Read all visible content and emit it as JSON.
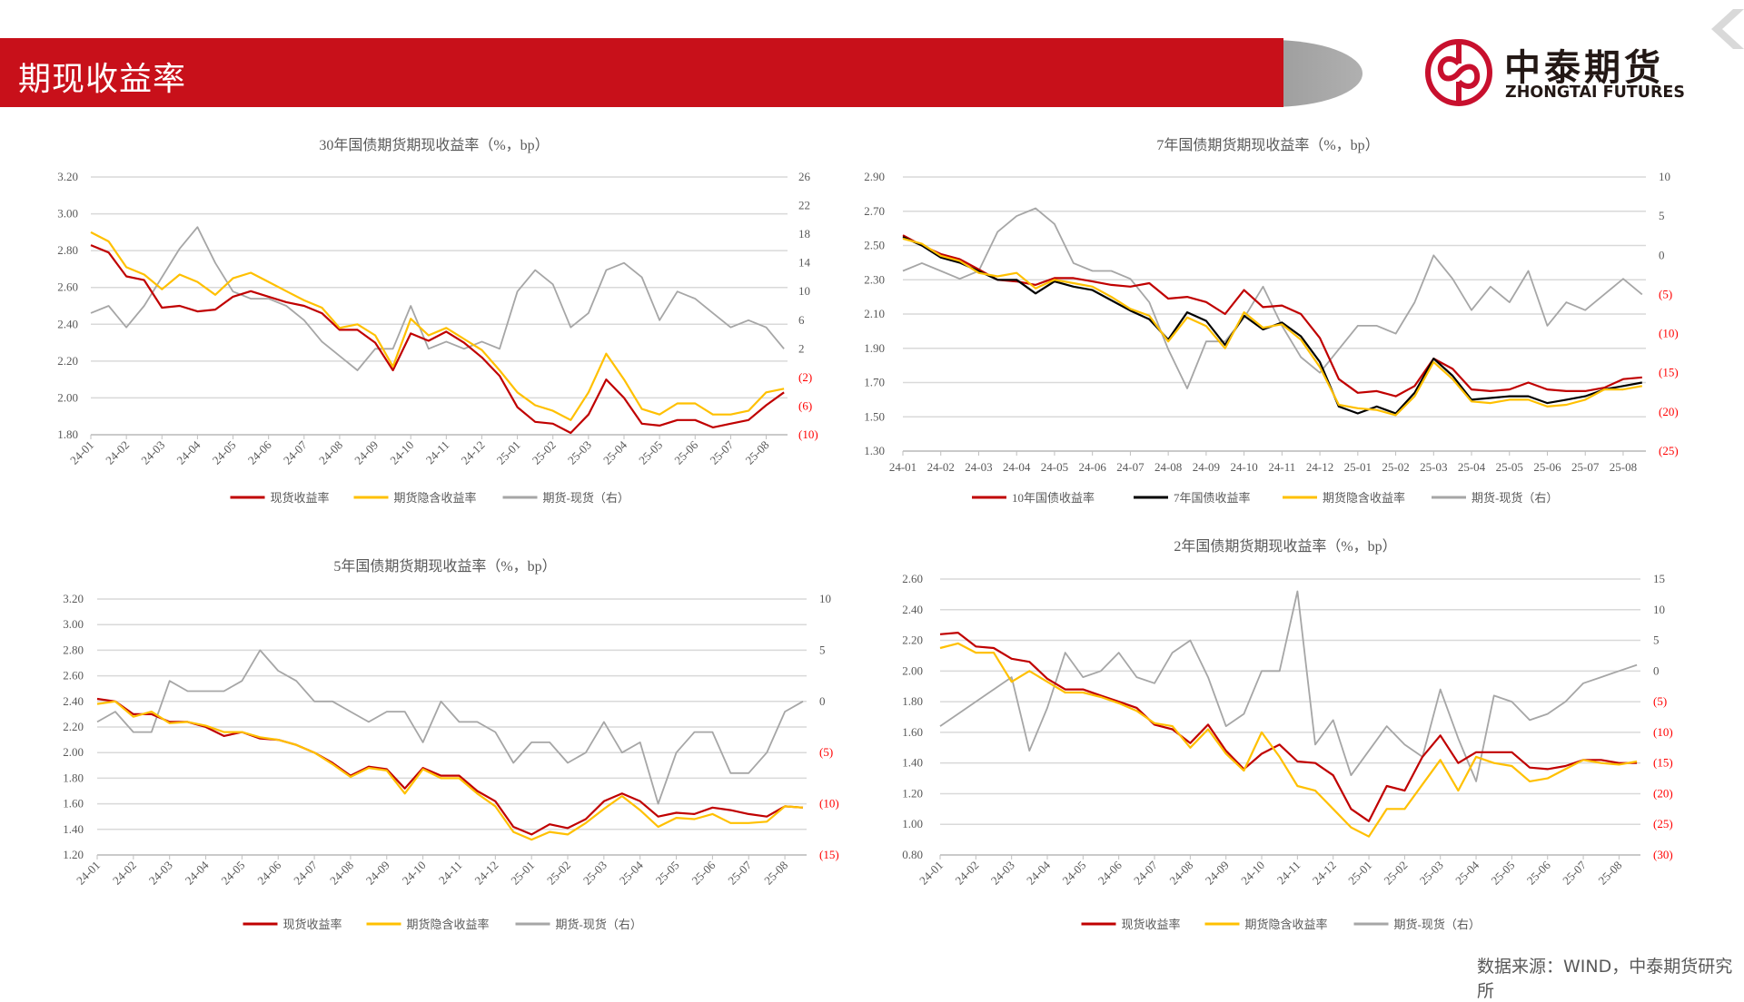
{
  "header": {
    "title": "期现收益率"
  },
  "logo": {
    "cn": "中泰期货",
    "en": "ZHONGTAI FUTURES"
  },
  "footer": {
    "source": "数据来源：WIND，中泰期货研究所"
  },
  "colors": {
    "red": "#C00000",
    "yellow": "#FFC000",
    "gray": "#A6A6A6",
    "black": "#000000",
    "brand": "#C8101A",
    "negative_label": "#FF0000"
  },
  "chart_data": [
    {
      "type": "line",
      "title": "30年国债期货期现收益率（%，bp）",
      "x_ticks": [
        "24-01",
        "24-02",
        "24-03",
        "24-04",
        "24-05",
        "24-06",
        "24-07",
        "24-08",
        "24-09",
        "24-10",
        "24-11",
        "24-12",
        "25-01",
        "25-02",
        "25-03",
        "25-04",
        "25-05",
        "25-06",
        "25-07",
        "25-08"
      ],
      "x": [
        0,
        0.5,
        1,
        1.5,
        2,
        2.5,
        3,
        3.5,
        4,
        4.5,
        5,
        5.5,
        6,
        6.5,
        7,
        7.5,
        8,
        8.5,
        9,
        9.5,
        10,
        10.5,
        11,
        11.5,
        12,
        12.5,
        13,
        13.5,
        14,
        14.5,
        15,
        15.5,
        16,
        16.5,
        17,
        17.5,
        18,
        18.5,
        19,
        19.5
      ],
      "ylim": [
        1.8,
        3.2
      ],
      "y_ticks": [
        "3.20",
        "3.00",
        "2.80",
        "2.60",
        "2.40",
        "2.20",
        "2.00",
        "1.80"
      ],
      "y2lim": [
        -10,
        26
      ],
      "y2_ticks": [
        "26",
        "22",
        "18",
        "14",
        "10",
        "6",
        "2",
        "(2)",
        "(6)",
        "(10)"
      ],
      "grid": true,
      "legend_position": "bottom",
      "series": [
        {
          "name": "现货收益率",
          "color": "#C00000",
          "axis": "left",
          "values": [
            2.83,
            2.79,
            2.66,
            2.64,
            2.49,
            2.5,
            2.47,
            2.48,
            2.55,
            2.58,
            2.55,
            2.52,
            2.5,
            2.46,
            2.37,
            2.37,
            2.3,
            2.15,
            2.35,
            2.31,
            2.36,
            2.3,
            2.22,
            2.12,
            1.95,
            1.87,
            1.86,
            1.81,
            1.91,
            2.1,
            2.0,
            1.86,
            1.85,
            1.88,
            1.88,
            1.84,
            1.86,
            1.88,
            1.96,
            2.03
          ]
        },
        {
          "name": "期货隐含收益率",
          "color": "#FFC000",
          "axis": "left",
          "values": [
            2.9,
            2.85,
            2.71,
            2.67,
            2.59,
            2.67,
            2.63,
            2.56,
            2.65,
            2.68,
            2.63,
            2.58,
            2.53,
            2.49,
            2.38,
            2.4,
            2.34,
            2.17,
            2.43,
            2.34,
            2.38,
            2.32,
            2.26,
            2.15,
            2.03,
            1.96,
            1.93,
            1.88,
            2.03,
            2.24,
            2.1,
            1.94,
            1.91,
            1.97,
            1.97,
            1.91,
            1.91,
            1.93,
            2.03,
            2.05
          ]
        },
        {
          "name": "期货-现货（右）",
          "color": "#A6A6A6",
          "axis": "right",
          "values": [
            7,
            8,
            5,
            8,
            12,
            16,
            19,
            14,
            10,
            9,
            9,
            8,
            6,
            3,
            1,
            -1,
            2,
            2,
            8,
            2,
            3,
            2,
            3,
            2,
            10,
            13,
            11,
            5,
            7,
            13,
            14,
            12,
            6,
            10,
            9,
            7,
            5,
            6,
            5,
            2
          ]
        }
      ]
    },
    {
      "type": "line",
      "title": "7年国债期货期现收益率（%，bp）",
      "x_ticks": [
        "24-01",
        "24-02",
        "24-03",
        "24-04",
        "24-05",
        "24-06",
        "24-07",
        "24-08",
        "24-09",
        "24-10",
        "24-11",
        "24-12",
        "25-01",
        "25-02",
        "25-03",
        "25-04",
        "25-05",
        "25-06",
        "25-07",
        "25-08"
      ],
      "x": [
        0,
        0.5,
        1,
        1.5,
        2,
        2.5,
        3,
        3.5,
        4,
        4.5,
        5,
        5.5,
        6,
        6.5,
        7,
        7.5,
        8,
        8.5,
        9,
        9.5,
        10,
        10.5,
        11,
        11.5,
        12,
        12.5,
        13,
        13.5,
        14,
        14.5,
        15,
        15.5,
        16,
        16.5,
        17,
        17.5,
        18,
        18.5,
        19,
        19.5
      ],
      "ylim": [
        1.3,
        2.9
      ],
      "y_ticks": [
        "2.90",
        "2.70",
        "2.50",
        "2.30",
        "2.10",
        "1.90",
        "1.70",
        "1.50",
        "1.30"
      ],
      "y2lim": [
        -25,
        10
      ],
      "y2_ticks": [
        "10",
        "5",
        "0",
        "(5)",
        "(10)",
        "(15)",
        "(20)",
        "(25)"
      ],
      "grid": true,
      "legend_position": "bottom",
      "series": [
        {
          "name": "10年国债收益率",
          "color": "#C00000",
          "axis": "left",
          "values": [
            2.56,
            2.5,
            2.45,
            2.42,
            2.36,
            2.3,
            2.29,
            2.27,
            2.31,
            2.31,
            2.29,
            2.27,
            2.26,
            2.28,
            2.19,
            2.2,
            2.17,
            2.1,
            2.24,
            2.14,
            2.15,
            2.1,
            1.96,
            1.72,
            1.64,
            1.65,
            1.62,
            1.68,
            1.84,
            1.78,
            1.66,
            1.65,
            1.66,
            1.7,
            1.66,
            1.65,
            1.65,
            1.67,
            1.72,
            1.73
          ]
        },
        {
          "name": "7年国债收益率",
          "color": "#000000",
          "axis": "left",
          "values": [
            2.55,
            2.5,
            2.43,
            2.4,
            2.35,
            2.3,
            2.3,
            2.22,
            2.29,
            2.26,
            2.24,
            2.18,
            2.12,
            2.07,
            1.95,
            2.11,
            2.06,
            1.92,
            2.09,
            2.01,
            2.05,
            1.97,
            1.82,
            1.56,
            1.52,
            1.56,
            1.52,
            1.64,
            1.84,
            1.74,
            1.6,
            1.61,
            1.62,
            1.62,
            1.58,
            1.6,
            1.62,
            1.66,
            1.68,
            1.7
          ]
        },
        {
          "name": "期货隐含收益率",
          "color": "#FFC000",
          "axis": "left",
          "values": [
            2.54,
            2.51,
            2.44,
            2.41,
            2.34,
            2.32,
            2.34,
            2.25,
            2.3,
            2.28,
            2.26,
            2.2,
            2.13,
            2.09,
            1.94,
            2.08,
            2.03,
            1.9,
            2.11,
            2.02,
            2.04,
            1.95,
            1.79,
            1.57,
            1.55,
            1.54,
            1.51,
            1.62,
            1.82,
            1.72,
            1.59,
            1.58,
            1.6,
            1.6,
            1.56,
            1.57,
            1.6,
            1.66,
            1.66,
            1.68
          ]
        },
        {
          "name": "期货-现货（右）",
          "color": "#A6A6A6",
          "axis": "right",
          "values": [
            -2,
            -1,
            -2,
            -3,
            -2,
            3,
            5,
            6,
            4,
            -1,
            -2,
            -2,
            -3,
            -6,
            -12,
            -17,
            -11,
            -11,
            -8,
            -4,
            -9,
            -13,
            -15,
            -12,
            -9,
            -9,
            -10,
            -6,
            0,
            -3,
            -7,
            -4,
            -6,
            -2,
            -9,
            -6,
            -7,
            -5,
            -3,
            -5
          ]
        }
      ]
    },
    {
      "type": "line",
      "title": "5年国债期货期现收益率（%，bp）",
      "x_ticks": [
        "24-01",
        "24-02",
        "24-03",
        "24-04",
        "24-05",
        "24-06",
        "24-07",
        "24-08",
        "24-09",
        "24-10",
        "24-11",
        "24-12",
        "25-01",
        "25-02",
        "25-03",
        "25-04",
        "25-05",
        "25-06",
        "25-07",
        "25-08"
      ],
      "x": [
        0,
        0.5,
        1,
        1.5,
        2,
        2.5,
        3,
        3.5,
        4,
        4.5,
        5,
        5.5,
        6,
        6.5,
        7,
        7.5,
        8,
        8.5,
        9,
        9.5,
        10,
        10.5,
        11,
        11.5,
        12,
        12.5,
        13,
        13.5,
        14,
        14.5,
        15,
        15.5,
        16,
        16.5,
        17,
        17.5,
        18,
        18.5,
        19,
        19.5
      ],
      "ylim": [
        1.2,
        3.2
      ],
      "y_ticks": [
        "3.20",
        "3.00",
        "2.80",
        "2.60",
        "2.40",
        "2.20",
        "2.00",
        "1.80",
        "1.60",
        "1.40",
        "1.20"
      ],
      "y2lim": [
        -15,
        10
      ],
      "y2_ticks": [
        "10",
        "5",
        "0",
        "(5)",
        "(10)",
        "(15)"
      ],
      "grid": true,
      "legend_position": "bottom",
      "series": [
        {
          "name": "现货收益率",
          "color": "#C00000",
          "axis": "left",
          "values": [
            2.42,
            2.4,
            2.3,
            2.3,
            2.24,
            2.24,
            2.2,
            2.13,
            2.16,
            2.11,
            2.1,
            2.06,
            2.0,
            1.92,
            1.82,
            1.89,
            1.87,
            1.72,
            1.88,
            1.82,
            1.82,
            1.7,
            1.62,
            1.42,
            1.36,
            1.44,
            1.41,
            1.48,
            1.62,
            1.68,
            1.62,
            1.5,
            1.53,
            1.52,
            1.57,
            1.55,
            1.52,
            1.5,
            1.58,
            1.57
          ]
        },
        {
          "name": "期货隐含收益率",
          "color": "#FFC000",
          "axis": "left",
          "values": [
            2.38,
            2.4,
            2.28,
            2.32,
            2.23,
            2.24,
            2.21,
            2.16,
            2.16,
            2.12,
            2.1,
            2.06,
            2.0,
            1.91,
            1.81,
            1.88,
            1.86,
            1.68,
            1.87,
            1.8,
            1.8,
            1.68,
            1.58,
            1.38,
            1.32,
            1.38,
            1.36,
            1.45,
            1.56,
            1.66,
            1.55,
            1.42,
            1.49,
            1.48,
            1.52,
            1.45,
            1.45,
            1.46,
            1.58,
            1.57
          ]
        },
        {
          "name": "期货-现货（右）",
          "color": "#A6A6A6",
          "axis": "right",
          "values": [
            -2,
            -1,
            -3,
            -3,
            2,
            1,
            1,
            1,
            2,
            5,
            3,
            2,
            0,
            0,
            -1,
            -2,
            -1,
            -1,
            -4,
            0,
            -2,
            -2,
            -3,
            -6,
            -4,
            -4,
            -6,
            -5,
            -2,
            -5,
            -4,
            -10,
            -5,
            -3,
            -3,
            -7,
            -7,
            -5,
            -1,
            0
          ]
        }
      ]
    },
    {
      "type": "line",
      "title": "2年国债期货期现收益率（%，bp）",
      "x_ticks": [
        "24-01",
        "24-02",
        "24-03",
        "24-04",
        "24-05",
        "24-06",
        "24-07",
        "24-08",
        "24-09",
        "24-10",
        "24-11",
        "24-12",
        "25-01",
        "25-02",
        "25-03",
        "25-04",
        "25-05",
        "25-06",
        "25-07",
        "25-08"
      ],
      "x": [
        0,
        0.5,
        1,
        1.5,
        2,
        2.5,
        3,
        3.5,
        4,
        4.5,
        5,
        5.5,
        6,
        6.5,
        7,
        7.5,
        8,
        8.5,
        9,
        9.5,
        10,
        10.5,
        11,
        11.5,
        12,
        12.5,
        13,
        13.5,
        14,
        14.5,
        15,
        15.5,
        16,
        16.5,
        17,
        17.5,
        18,
        18.5,
        19,
        19.5
      ],
      "ylim": [
        0.8,
        2.6
      ],
      "y_ticks": [
        "2.60",
        "2.40",
        "2.20",
        "2.00",
        "1.80",
        "1.60",
        "1.40",
        "1.20",
        "1.00",
        "0.80"
      ],
      "y2lim": [
        -30,
        15
      ],
      "y2_ticks": [
        "15",
        "10",
        "5",
        "0",
        "(5)",
        "(10)",
        "(15)",
        "(20)",
        "(25)",
        "(30)"
      ],
      "grid": true,
      "legend_position": "bottom",
      "series": [
        {
          "name": "现货收益率",
          "color": "#C00000",
          "axis": "left",
          "values": [
            2.24,
            2.25,
            2.16,
            2.15,
            2.08,
            2.06,
            1.95,
            1.88,
            1.88,
            1.84,
            1.8,
            1.76,
            1.65,
            1.62,
            1.53,
            1.65,
            1.48,
            1.36,
            1.46,
            1.52,
            1.41,
            1.4,
            1.32,
            1.1,
            1.02,
            1.25,
            1.22,
            1.44,
            1.58,
            1.4,
            1.47,
            1.47,
            1.47,
            1.37,
            1.36,
            1.38,
            1.42,
            1.42,
            1.4,
            1.4
          ]
        },
        {
          "name": "期货隐含收益率",
          "color": "#FFC000",
          "axis": "left",
          "values": [
            2.15,
            2.18,
            2.12,
            2.12,
            1.93,
            2.0,
            1.93,
            1.86,
            1.86,
            1.83,
            1.79,
            1.74,
            1.66,
            1.64,
            1.5,
            1.62,
            1.46,
            1.35,
            1.6,
            1.44,
            1.25,
            1.22,
            1.1,
            0.98,
            0.92,
            1.1,
            1.1,
            1.26,
            1.42,
            1.22,
            1.44,
            1.4,
            1.38,
            1.28,
            1.3,
            1.36,
            1.42,
            1.4,
            1.39,
            1.41
          ]
        },
        {
          "name": "期货-现货（右）",
          "color": "#A6A6A6",
          "axis": "right",
          "values": [
            -9,
            -7,
            -5,
            -3,
            -1,
            -13,
            -6,
            3,
            -1,
            0,
            3,
            -1,
            -2,
            3,
            5,
            -1,
            -9,
            -7,
            0,
            0,
            13,
            -12,
            -8,
            -17,
            -13,
            -9,
            -12,
            -14,
            -3,
            -11,
            -18,
            -4,
            -5,
            -8,
            -7,
            -5,
            -2,
            -1,
            0,
            1
          ]
        }
      ]
    }
  ]
}
